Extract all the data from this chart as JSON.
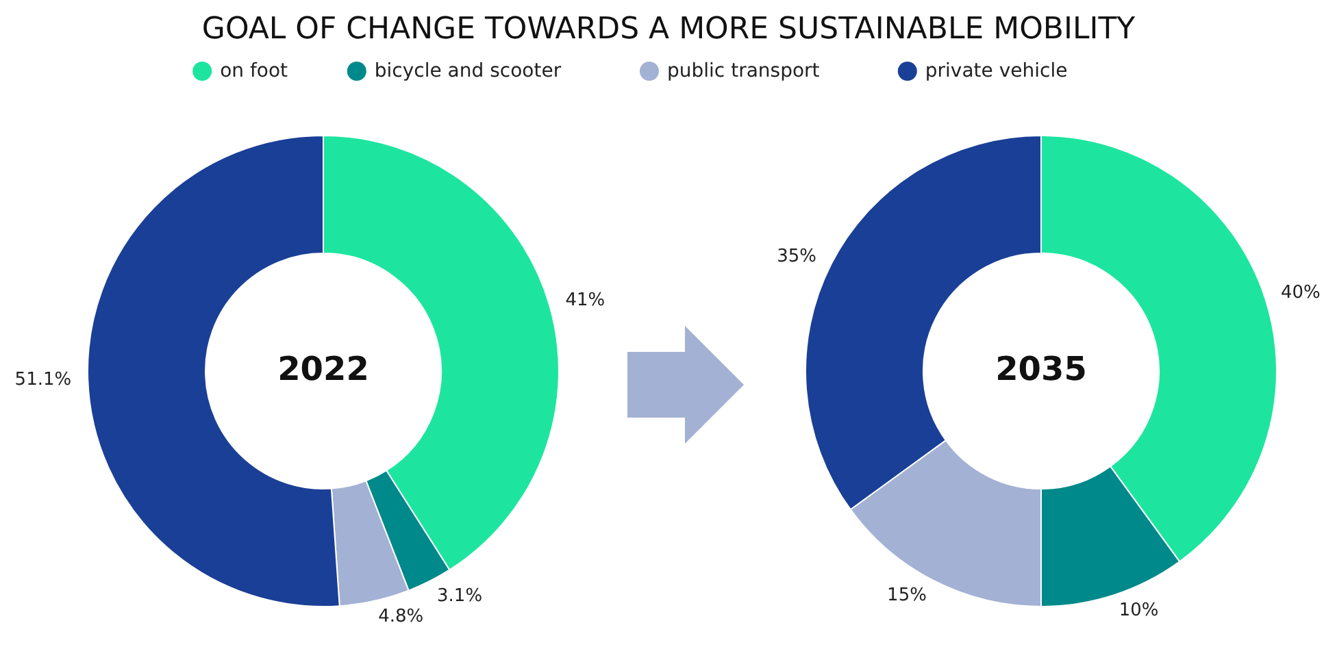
{
  "chart_data": [
    {
      "type": "donut",
      "title": "2022",
      "annotations": [
        "GOAL OF CHANGE TOWARDS A MORE SUSTAINABLE MOBILITY"
      ],
      "legend": "top",
      "categories": [
        "on foot",
        "bicycle and scooter",
        "public transport",
        "private vehicle"
      ],
      "values": [
        41,
        3.1,
        4.8,
        51.1
      ],
      "value_labels": [
        "41%",
        "3.1%",
        "4.8%",
        "51.1%"
      ],
      "colors": [
        "#1de5a0",
        "#00898a",
        "#a3b1d4",
        "#1a3f96"
      ]
    },
    {
      "type": "donut",
      "title": "2035",
      "categories": [
        null,
        null,
        null,
        null
      ],
      "values": [
        40,
        10,
        15,
        35
      ],
      "value_labels": [
        "40%",
        "10%",
        "15%",
        "35%"
      ],
      "colors": [
        "#1de5a0",
        "#00898a",
        "#a3b1d4",
        "#1a3f96"
      ]
    }
  ]
}
